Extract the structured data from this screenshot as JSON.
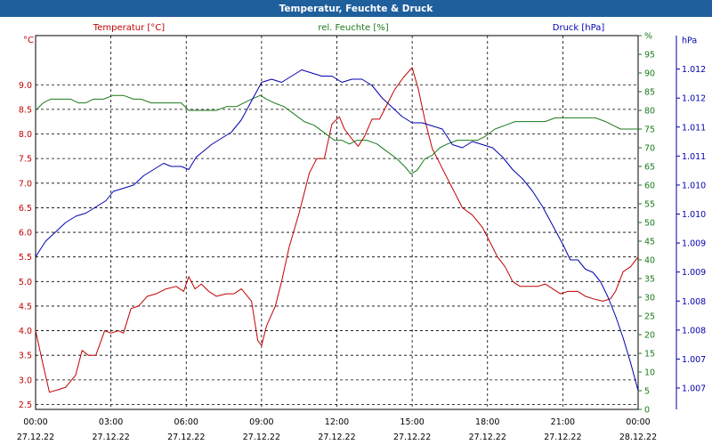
{
  "window": {
    "title": "Temperatur, Feuchte & Druck"
  },
  "colors": {
    "temperature": "#c00000",
    "humidity": "#1a7a1a",
    "pressure": "#0000b0",
    "grid": "#000000",
    "titlebar": "#1f5f9c"
  },
  "chart_data": {
    "type": "line",
    "title": "Temperatur, Feuchte & Druck",
    "grid": true,
    "x_ticks": [
      {
        "time": "00:00",
        "date": "27.12.22"
      },
      {
        "time": "03:00",
        "date": "27.12.22"
      },
      {
        "time": "06:00",
        "date": "27.12.22"
      },
      {
        "time": "09:00",
        "date": "27.12.22"
      },
      {
        "time": "12:00",
        "date": "27.12.22"
      },
      {
        "time": "15:00",
        "date": "27.12.22"
      },
      {
        "time": "18:00",
        "date": "27.12.22"
      },
      {
        "time": "21:00",
        "date": "27.12.22"
      },
      {
        "time": "00:00",
        "date": "28.12.22"
      }
    ],
    "xlim_hours": [
      0,
      24
    ],
    "axes": {
      "temperature": {
        "unit": "°C",
        "ylim": [
          2.4,
          10.0
        ],
        "ticks": [
          "2.5",
          "3.0",
          "3.5",
          "4.0",
          "4.5",
          "5.0",
          "5.5",
          "6.0",
          "6.5",
          "7.0",
          "7.5",
          "8.0",
          "8.5",
          "9.0"
        ]
      },
      "humidity": {
        "unit": "%",
        "ylim": [
          0,
          100
        ],
        "ticks": [
          "0",
          "5",
          "10",
          "15",
          "20",
          "25",
          "30",
          "35",
          "40",
          "45",
          "50",
          "55",
          "60",
          "65",
          "70",
          "75",
          "80",
          "85",
          "90",
          "95",
          "%"
        ]
      },
      "pressure": {
        "unit": "hPa",
        "ylim": [
          1006.6,
          1012.6
        ],
        "ticks": [
          "1.007",
          "1.007",
          "1.008",
          "1.008",
          "1.009",
          "1.009",
          "1.010",
          "1.010",
          "1.011",
          "1.011",
          "1.012",
          "1.012",
          "hPa"
        ]
      }
    },
    "series": [
      {
        "name": "Temperatur [°C]",
        "axis": "temperature",
        "points": [
          [
            0,
            4.0
          ],
          [
            0.3,
            3.3
          ],
          [
            0.55,
            2.75
          ],
          [
            0.9,
            2.8
          ],
          [
            1.2,
            2.85
          ],
          [
            1.6,
            3.1
          ],
          [
            1.85,
            3.6
          ],
          [
            2.1,
            3.5
          ],
          [
            2.4,
            3.5
          ],
          [
            2.75,
            4.0
          ],
          [
            3.0,
            3.95
          ],
          [
            3.3,
            4.0
          ],
          [
            3.5,
            3.95
          ],
          [
            3.8,
            4.45
          ],
          [
            4.1,
            4.5
          ],
          [
            4.45,
            4.7
          ],
          [
            4.8,
            4.75
          ],
          [
            5.2,
            4.85
          ],
          [
            5.6,
            4.9
          ],
          [
            5.9,
            4.8
          ],
          [
            6.1,
            5.1
          ],
          [
            6.35,
            4.85
          ],
          [
            6.6,
            4.95
          ],
          [
            6.9,
            4.8
          ],
          [
            7.2,
            4.7
          ],
          [
            7.6,
            4.75
          ],
          [
            7.9,
            4.75
          ],
          [
            8.2,
            4.85
          ],
          [
            8.6,
            4.6
          ],
          [
            8.85,
            3.8
          ],
          [
            9.0,
            3.7
          ],
          [
            9.2,
            4.1
          ],
          [
            9.55,
            4.5
          ],
          [
            9.8,
            5.0
          ],
          [
            10.1,
            5.7
          ],
          [
            10.5,
            6.4
          ],
          [
            10.9,
            7.2
          ],
          [
            11.2,
            7.5
          ],
          [
            11.5,
            7.5
          ],
          [
            11.8,
            8.2
          ],
          [
            12.1,
            8.35
          ],
          [
            12.3,
            8.1
          ],
          [
            12.6,
            7.9
          ],
          [
            12.85,
            7.75
          ],
          [
            13.1,
            7.95
          ],
          [
            13.4,
            8.3
          ],
          [
            13.7,
            8.3
          ],
          [
            14.0,
            8.6
          ],
          [
            14.3,
            8.9
          ],
          [
            14.65,
            9.15
          ],
          [
            15.0,
            9.35
          ],
          [
            15.25,
            8.9
          ],
          [
            15.5,
            8.3
          ],
          [
            15.8,
            7.7
          ],
          [
            16.1,
            7.4
          ],
          [
            16.4,
            7.1
          ],
          [
            16.7,
            6.8
          ],
          [
            17.0,
            6.5
          ],
          [
            17.4,
            6.35
          ],
          [
            17.8,
            6.1
          ],
          [
            18.1,
            5.8
          ],
          [
            18.4,
            5.5
          ],
          [
            18.7,
            5.3
          ],
          [
            19.0,
            5.0
          ],
          [
            19.3,
            4.9
          ],
          [
            19.6,
            4.9
          ],
          [
            20.0,
            4.9
          ],
          [
            20.3,
            4.95
          ],
          [
            20.6,
            4.85
          ],
          [
            20.9,
            4.75
          ],
          [
            21.2,
            4.8
          ],
          [
            21.6,
            4.8
          ],
          [
            21.9,
            4.7
          ],
          [
            22.2,
            4.65
          ],
          [
            22.6,
            4.6
          ],
          [
            22.9,
            4.65
          ],
          [
            23.1,
            4.8
          ],
          [
            23.4,
            5.2
          ],
          [
            23.7,
            5.3
          ],
          [
            24.0,
            5.5
          ]
        ]
      },
      {
        "name": "rel. Feuchte [%]",
        "axis": "humidity",
        "points": [
          [
            0,
            80
          ],
          [
            0.3,
            82
          ],
          [
            0.6,
            83
          ],
          [
            1.0,
            83
          ],
          [
            1.4,
            83
          ],
          [
            1.7,
            82
          ],
          [
            2.0,
            82
          ],
          [
            2.3,
            83
          ],
          [
            2.7,
            83
          ],
          [
            3.1,
            84
          ],
          [
            3.5,
            84
          ],
          [
            3.9,
            83
          ],
          [
            4.2,
            83
          ],
          [
            4.6,
            82
          ],
          [
            5.0,
            82
          ],
          [
            5.4,
            82
          ],
          [
            5.8,
            82
          ],
          [
            6.1,
            80
          ],
          [
            6.4,
            80
          ],
          [
            6.8,
            80
          ],
          [
            7.2,
            80
          ],
          [
            7.6,
            81
          ],
          [
            8.0,
            81
          ],
          [
            8.3,
            82
          ],
          [
            8.6,
            83
          ],
          [
            8.95,
            84
          ],
          [
            9.2,
            83
          ],
          [
            9.5,
            82
          ],
          [
            9.9,
            81
          ],
          [
            10.3,
            79
          ],
          [
            10.7,
            77
          ],
          [
            11.1,
            76
          ],
          [
            11.5,
            74
          ],
          [
            11.9,
            72
          ],
          [
            12.2,
            72
          ],
          [
            12.5,
            71
          ],
          [
            12.8,
            72
          ],
          [
            13.2,
            72
          ],
          [
            13.6,
            71
          ],
          [
            14.0,
            69
          ],
          [
            14.4,
            67
          ],
          [
            14.7,
            65
          ],
          [
            14.95,
            63
          ],
          [
            15.2,
            64
          ],
          [
            15.5,
            67
          ],
          [
            15.8,
            68
          ],
          [
            16.1,
            70
          ],
          [
            16.4,
            71
          ],
          [
            16.8,
            72
          ],
          [
            17.2,
            72
          ],
          [
            17.6,
            72
          ],
          [
            17.9,
            73
          ],
          [
            18.3,
            75
          ],
          [
            18.7,
            76
          ],
          [
            19.1,
            77
          ],
          [
            19.5,
            77
          ],
          [
            19.9,
            77
          ],
          [
            20.3,
            77
          ],
          [
            20.7,
            78
          ],
          [
            21.1,
            78
          ],
          [
            21.5,
            78
          ],
          [
            21.9,
            78
          ],
          [
            22.3,
            78
          ],
          [
            22.7,
            77
          ],
          [
            23.0,
            76
          ],
          [
            23.3,
            75
          ],
          [
            23.7,
            75
          ],
          [
            24.0,
            75
          ]
        ]
      },
      {
        "name": "Druck [hPa]",
        "axis": "pressure",
        "points": [
          [
            0,
            1009.05
          ],
          [
            0.4,
            1009.3
          ],
          [
            0.8,
            1009.45
          ],
          [
            1.2,
            1009.6
          ],
          [
            1.6,
            1009.7
          ],
          [
            2.0,
            1009.75
          ],
          [
            2.4,
            1009.85
          ],
          [
            2.8,
            1009.95
          ],
          [
            3.1,
            1010.1
          ],
          [
            3.5,
            1010.15
          ],
          [
            3.9,
            1010.2
          ],
          [
            4.3,
            1010.35
          ],
          [
            4.7,
            1010.45
          ],
          [
            5.1,
            1010.55
          ],
          [
            5.4,
            1010.5
          ],
          [
            5.8,
            1010.5
          ],
          [
            6.1,
            1010.45
          ],
          [
            6.4,
            1010.65
          ],
          [
            6.7,
            1010.75
          ],
          [
            7.0,
            1010.85
          ],
          [
            7.4,
            1010.95
          ],
          [
            7.8,
            1011.05
          ],
          [
            8.2,
            1011.25
          ],
          [
            8.6,
            1011.55
          ],
          [
            9.0,
            1011.85
          ],
          [
            9.4,
            1011.9
          ],
          [
            9.8,
            1011.85
          ],
          [
            10.2,
            1011.95
          ],
          [
            10.6,
            1012.05
          ],
          [
            11.0,
            1012.0
          ],
          [
            11.4,
            1011.95
          ],
          [
            11.8,
            1011.95
          ],
          [
            12.2,
            1011.85
          ],
          [
            12.6,
            1011.9
          ],
          [
            13.0,
            1011.9
          ],
          [
            13.4,
            1011.8
          ],
          [
            13.8,
            1011.6
          ],
          [
            14.2,
            1011.45
          ],
          [
            14.6,
            1011.3
          ],
          [
            15.0,
            1011.2
          ],
          [
            15.4,
            1011.2
          ],
          [
            15.8,
            1011.15
          ],
          [
            16.2,
            1011.1
          ],
          [
            16.6,
            1010.85
          ],
          [
            17.0,
            1010.8
          ],
          [
            17.4,
            1010.9
          ],
          [
            17.8,
            1010.85
          ],
          [
            18.2,
            1010.8
          ],
          [
            18.6,
            1010.65
          ],
          [
            19.0,
            1010.45
          ],
          [
            19.4,
            1010.3
          ],
          [
            19.8,
            1010.1
          ],
          [
            20.2,
            1009.85
          ],
          [
            20.6,
            1009.55
          ],
          [
            21.0,
            1009.25
          ],
          [
            21.3,
            1009.0
          ],
          [
            21.6,
            1009.0
          ],
          [
            21.9,
            1008.85
          ],
          [
            22.2,
            1008.8
          ],
          [
            22.5,
            1008.65
          ],
          [
            22.8,
            1008.4
          ],
          [
            23.1,
            1008.1
          ],
          [
            23.4,
            1007.75
          ],
          [
            23.7,
            1007.35
          ],
          [
            24.0,
            1006.9
          ]
        ]
      }
    ]
  }
}
